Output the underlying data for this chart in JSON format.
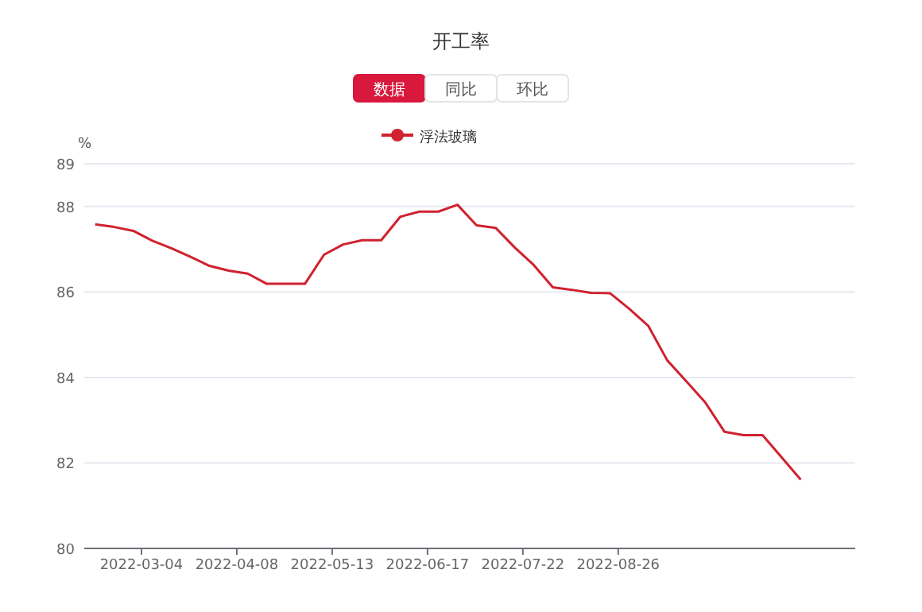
{
  "chart_data": {
    "type": "line",
    "title": "开工率",
    "ylabel": "%",
    "annotations": [
      "数据",
      "同比",
      "环比"
    ],
    "x": [
      "2022-02-15",
      "2022-02-22",
      "2022-03-01",
      "2022-03-08",
      "2022-03-15",
      "2022-03-22",
      "2022-03-29",
      "2022-04-05",
      "2022-04-12",
      "2022-04-19",
      "2022-04-26",
      "2022-05-03",
      "2022-05-10",
      "2022-05-17",
      "2022-05-24",
      "2022-05-31",
      "2022-06-07",
      "2022-06-14",
      "2022-06-21",
      "2022-06-28",
      "2022-07-05",
      "2022-07-12",
      "2022-07-19",
      "2022-07-26",
      "2022-08-02",
      "2022-08-09",
      "2022-08-16",
      "2022-08-23",
      "2022-08-30",
      "2022-09-06",
      "2022-09-13",
      "2022-09-20",
      "2022-09-27",
      "2022-10-04",
      "2022-10-11",
      "2022-10-18",
      "2022-10-25",
      "2022-11-01"
    ],
    "series": [
      {
        "name": "浮法玻璃",
        "color": "#d0222f",
        "values": [
          87.58,
          87.52,
          87.43,
          87.2,
          87.02,
          86.82,
          86.61,
          86.5,
          86.43,
          86.19,
          86.19,
          86.19,
          86.87,
          87.11,
          87.21,
          87.21,
          87.76,
          87.88,
          87.88,
          88.04,
          87.56,
          87.5,
          87.04,
          86.63,
          86.11,
          86.05,
          85.98,
          85.97,
          85.61,
          85.21,
          84.4,
          83.91,
          83.41,
          82.73,
          82.65,
          82.65,
          82.13,
          81.61
        ]
      }
    ],
    "xlim": [
      "2022-02-11",
      "2022-11-21"
    ],
    "xticks": [
      "2022-03-04",
      "2022-04-08",
      "2022-05-13",
      "2022-06-17",
      "2022-07-22",
      "2022-08-26"
    ],
    "ylim": [
      80,
      89
    ],
    "yticks": [
      80,
      82,
      84,
      86,
      88,
      89
    ],
    "grid": "y",
    "legend": "top"
  }
}
